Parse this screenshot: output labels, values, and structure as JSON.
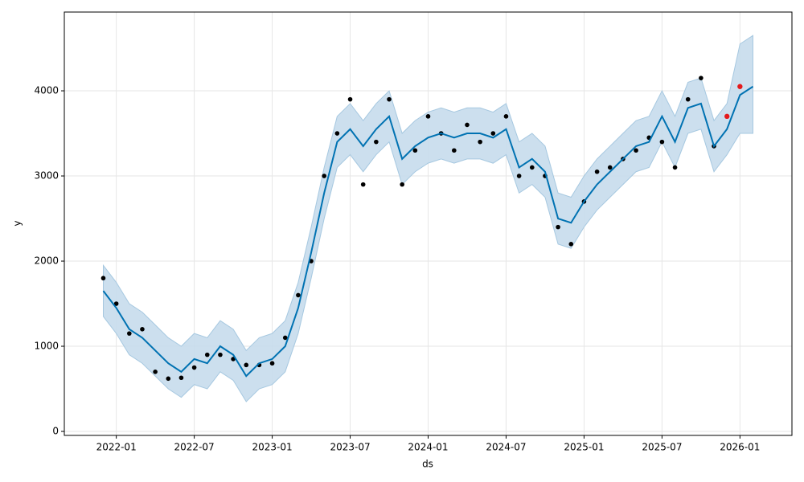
{
  "chart_data": {
    "type": "line",
    "xlabel": "ds",
    "ylabel": "y",
    "xlim": [
      "2021-09",
      "2026-05"
    ],
    "xticks": [
      "2022-01",
      "2022-07",
      "2023-01",
      "2023-07",
      "2024-01",
      "2024-07",
      "2025-01",
      "2025-07",
      "2026-01"
    ],
    "ylim": [
      -47,
      4925
    ],
    "yticks": [
      0,
      1000,
      2000,
      3000,
      4000
    ],
    "grid": true,
    "x": [
      "2021-12",
      "2022-01",
      "2022-02",
      "2022-03",
      "2022-04",
      "2022-05",
      "2022-06",
      "2022-07",
      "2022-08",
      "2022-09",
      "2022-10",
      "2022-11",
      "2022-12",
      "2023-01",
      "2023-02",
      "2023-03",
      "2023-04",
      "2023-05",
      "2023-06",
      "2023-07",
      "2023-08",
      "2023-09",
      "2023-10",
      "2023-11",
      "2023-12",
      "2024-01",
      "2024-02",
      "2024-03",
      "2024-04",
      "2024-05",
      "2024-06",
      "2024-07",
      "2024-08",
      "2024-09",
      "2024-10",
      "2024-11",
      "2024-12",
      "2025-01",
      "2025-02",
      "2025-03",
      "2025-04",
      "2025-05",
      "2025-06",
      "2025-07",
      "2025-08",
      "2025-09",
      "2025-10",
      "2025-11",
      "2025-12",
      "2026-01",
      "2026-02"
    ],
    "band": {
      "color": "#c7dcec",
      "lower": [
        1350,
        1150,
        900,
        800,
        650,
        500,
        400,
        550,
        500,
        700,
        600,
        350,
        500,
        550,
        700,
        1150,
        1800,
        2500,
        3100,
        3250,
        3050,
        3250,
        3400,
        2900,
        3050,
        3150,
        3200,
        3150,
        3200,
        3200,
        3150,
        3250,
        2800,
        2900,
        2750,
        2200,
        2150,
        2400,
        2600,
        2750,
        2900,
        3050,
        3100,
        3400,
        3100,
        3500,
        3550,
        3050,
        3250,
        3500,
        3500
      ],
      "upper": [
        1950,
        1750,
        1500,
        1400,
        1250,
        1100,
        1000,
        1150,
        1100,
        1300,
        1200,
        950,
        1100,
        1150,
        1300,
        1750,
        2400,
        3100,
        3700,
        3850,
        3650,
        3850,
        4000,
        3500,
        3650,
        3750,
        3800,
        3750,
        3800,
        3800,
        3750,
        3850,
        3400,
        3500,
        3350,
        2800,
        2750,
        3000,
        3200,
        3350,
        3500,
        3650,
        3700,
        4000,
        3700,
        4100,
        4150,
        3650,
        3850,
        4550,
        4650
      ]
    },
    "series": [
      {
        "color": "#0072b2",
        "values": [
          1650,
          1450,
          1200,
          1100,
          950,
          800,
          700,
          850,
          800,
          1000,
          900,
          650,
          800,
          850,
          1000,
          1450,
          2100,
          2800,
          3400,
          3550,
          3350,
          3550,
          3700,
          3200,
          3350,
          3450,
          3500,
          3450,
          3500,
          3500,
          3450,
          3550,
          3100,
          3200,
          3050,
          2500,
          2450,
          2700,
          2900,
          3050,
          3200,
          3350,
          3400,
          3700,
          3400,
          3800,
          3850,
          3350,
          3550,
          3950,
          4050
        ]
      }
    ],
    "points": {
      "color": "#000000",
      "values": [
        1800,
        1500,
        1150,
        1200,
        700,
        620,
        630,
        750,
        900,
        900,
        850,
        780,
        780,
        800,
        1100,
        1600,
        2000,
        3000,
        3500,
        3900,
        2900,
        3400,
        3900,
        2900,
        3300,
        3700,
        3500,
        3300,
        3600,
        3400,
        3500,
        3700,
        3000,
        3100,
        3000,
        2400,
        2200,
        2700,
        3050,
        3100,
        3200,
        3300,
        3450,
        3400,
        3100,
        3900,
        4150,
        3350,
        null,
        null,
        null
      ]
    },
    "recent": {
      "color": "#e41a1c",
      "x": [
        "2025-12",
        "2026-01"
      ],
      "values": [
        3700,
        4050
      ]
    }
  }
}
